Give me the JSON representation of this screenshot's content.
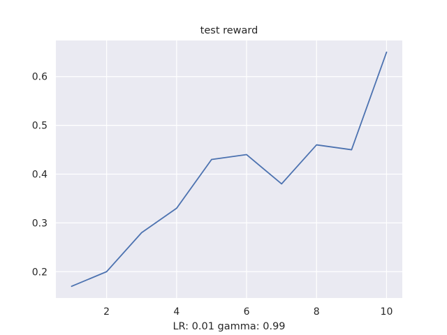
{
  "chart_data": {
    "type": "line",
    "title": "test reward",
    "xlabel": "LR: 0.01 gamma: 0.99",
    "ylabel": "",
    "x": [
      1,
      2,
      3,
      4,
      5,
      6,
      7,
      8,
      9,
      10
    ],
    "series": [
      {
        "name": "test reward",
        "values": [
          0.17,
          0.2,
          0.28,
          0.33,
          0.43,
          0.44,
          0.38,
          0.46,
          0.45,
          0.65
        ],
        "color": "#4c72b0"
      }
    ],
    "xticks": [
      2,
      4,
      6,
      8,
      10
    ],
    "xtick_labels": [
      "2",
      "4",
      "6",
      "8",
      "10"
    ],
    "yticks": [
      0.2,
      0.3,
      0.4,
      0.5,
      0.6
    ],
    "ytick_labels": [
      "0.2",
      "0.3",
      "0.4",
      "0.5",
      "0.6"
    ],
    "xlim": [
      0.55,
      10.45
    ],
    "ylim": [
      0.146,
      0.674
    ],
    "grid": true,
    "colors": {
      "background": "#eaeaf2",
      "grid": "#ffffff",
      "line": "#4c72b0",
      "text": "#262626"
    }
  }
}
